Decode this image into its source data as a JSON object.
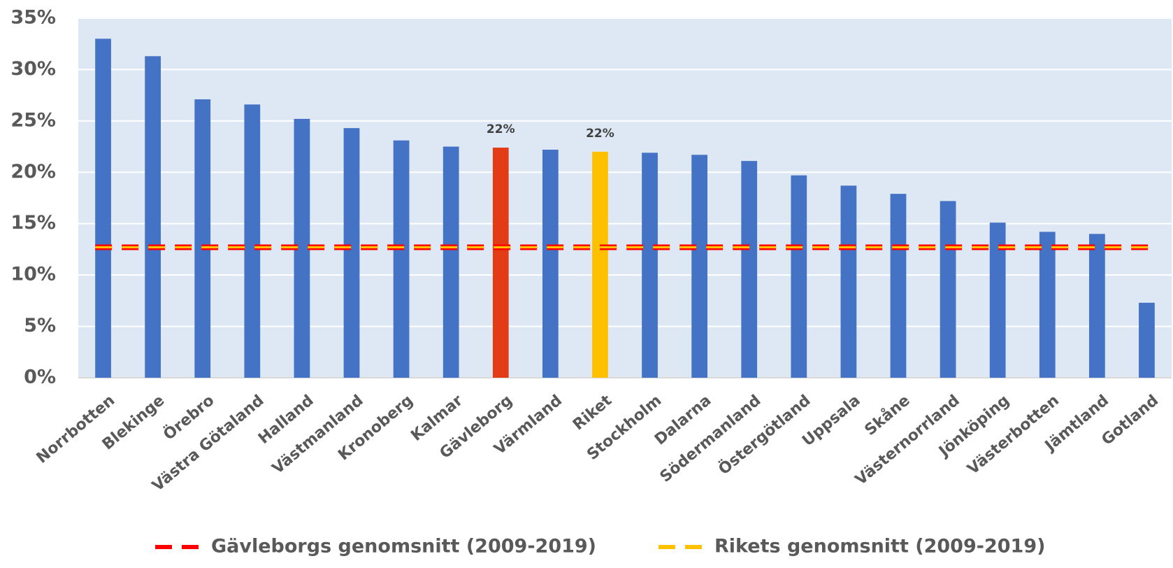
{
  "chart_data": {
    "type": "bar",
    "categories": [
      "Norrbotten",
      "Blekinge",
      "Örebro",
      "Västra Götaland",
      "Halland",
      "Västmanland",
      "Kronoberg",
      "Kalmar",
      "Gävleborg",
      "Värmland",
      "Riket",
      "Stockholm",
      "Dalarna",
      "Södermanland",
      "Östergötland",
      "Uppsala",
      "Skåne",
      "Västernorrland",
      "Jönköping",
      "Västerbotten",
      "Jämtland",
      "Gotland"
    ],
    "values": [
      33.0,
      31.3,
      27.1,
      26.6,
      25.2,
      24.3,
      23.1,
      22.5,
      22.4,
      22.2,
      22.0,
      21.9,
      21.7,
      21.1,
      19.7,
      18.7,
      17.9,
      17.2,
      15.1,
      14.2,
      14.0,
      7.3
    ],
    "colors": [
      "#4472c4",
      "#4472c4",
      "#4472c4",
      "#4472c4",
      "#4472c4",
      "#4472c4",
      "#4472c4",
      "#4472c4",
      "#e23c16",
      "#4472c4",
      "#ffc000",
      "#4472c4",
      "#4472c4",
      "#4472c4",
      "#4472c4",
      "#4472c4",
      "#4472c4",
      "#4472c4",
      "#4472c4",
      "#4472c4",
      "#4472c4",
      "#4472c4"
    ],
    "value_labels": [
      null,
      null,
      null,
      null,
      null,
      null,
      null,
      null,
      "22%",
      null,
      "22%",
      null,
      null,
      null,
      null,
      null,
      null,
      null,
      null,
      null,
      null,
      null
    ],
    "lines": [
      {
        "name": "Gävleborgs genomsnitt (2009-2019)",
        "color": "#ff0000",
        "value": 12.7
      },
      {
        "name": "Rikets genomsnitt (2009-2019)",
        "color": "#ffc000",
        "value": 12.7
      }
    ],
    "ylim": [
      0,
      35
    ],
    "yticks": [
      {
        "value": 0,
        "label": "0%"
      },
      {
        "value": 5,
        "label": "5%"
      },
      {
        "value": 10,
        "label": "10%"
      },
      {
        "value": 15,
        "label": "15%"
      },
      {
        "value": 20,
        "label": "20%"
      },
      {
        "value": 25,
        "label": "25%"
      },
      {
        "value": 30,
        "label": "30%"
      },
      {
        "value": 35,
        "label": "35%"
      }
    ],
    "grid": true,
    "plot_background": "#dee8f4"
  }
}
